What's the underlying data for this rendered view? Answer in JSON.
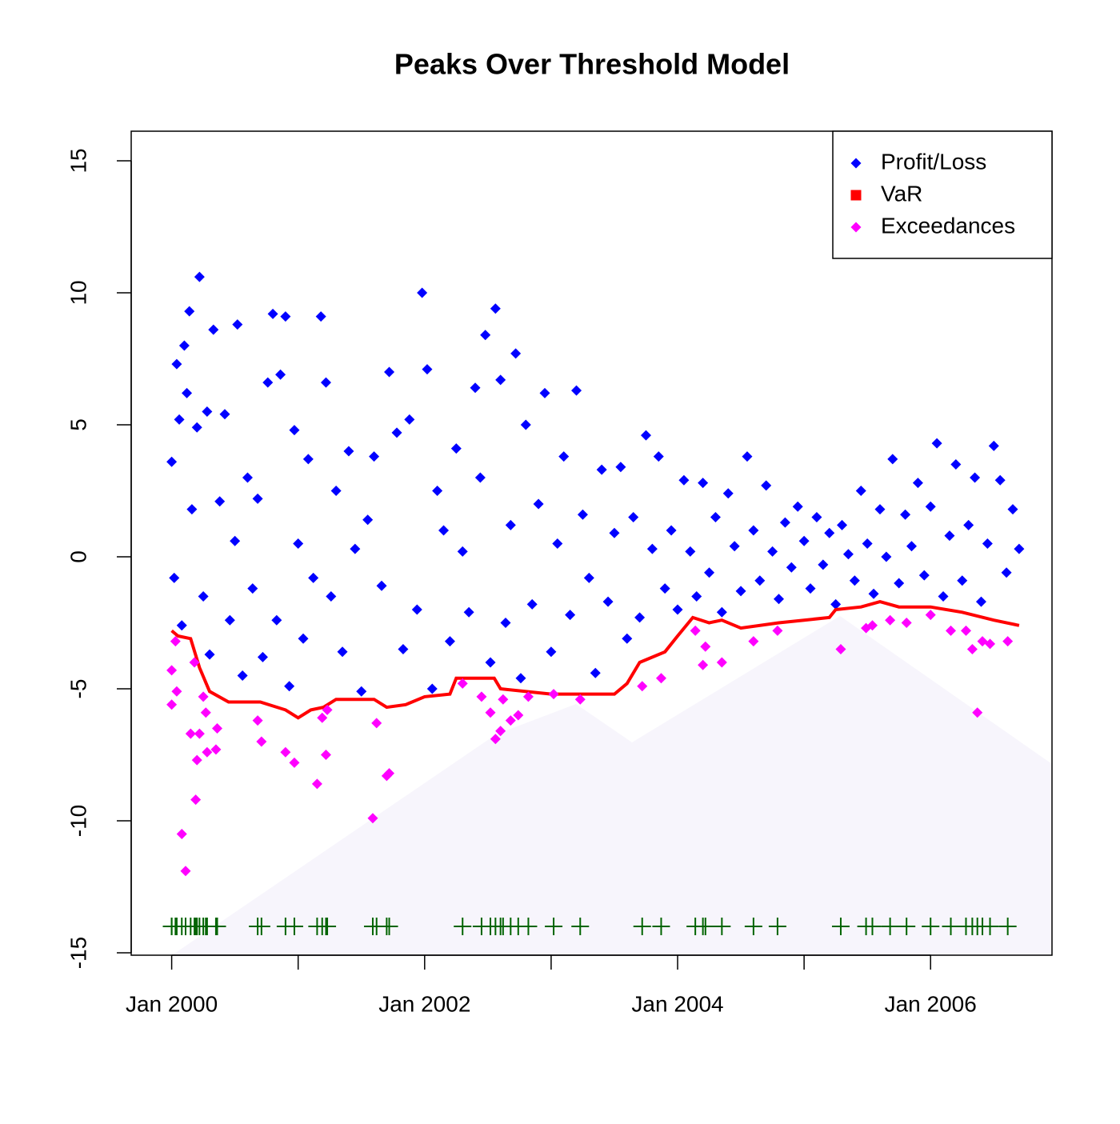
{
  "chart_data": {
    "type": "scatter",
    "title": "Peaks Over Threshold Model",
    "xlim": [
      1999.68,
      2006.96
    ],
    "ylim": [
      -15.09,
      16.12
    ],
    "xticks": [
      {
        "value": 2000,
        "label": "Jan 2000"
      },
      {
        "value": 2001
      },
      {
        "value": 2002,
        "label": "Jan 2002"
      },
      {
        "value": 2003
      },
      {
        "value": 2004,
        "label": "Jan 2004"
      },
      {
        "value": 2005
      },
      {
        "value": 2006,
        "label": "Jan 2006"
      }
    ],
    "yticks": [
      -15,
      -10,
      -5,
      0,
      5,
      10,
      15
    ],
    "legend": "topright",
    "rug": {
      "y": -14,
      "color": "#006400"
    },
    "series": [
      {
        "name": "Profit/Loss",
        "type": "points",
        "marker": "diamond",
        "color": "#0000ff",
        "x": [
          2000.0,
          2000.02,
          2000.04,
          2000.06,
          2000.08,
          2000.1,
          2000.12,
          2000.14,
          2000.16,
          2000.2,
          2000.22,
          2000.25,
          2000.28,
          2000.3,
          2000.33,
          2000.38,
          2000.42,
          2000.46,
          2000.5,
          2000.52,
          2000.56,
          2000.6,
          2000.64,
          2000.68,
          2000.72,
          2000.76,
          2000.8,
          2000.83,
          2000.86,
          2000.9,
          2000.93,
          2000.97,
          2001.0,
          2001.04,
          2001.08,
          2001.12,
          2001.18,
          2001.22,
          2001.26,
          2001.3,
          2001.35,
          2001.4,
          2001.45,
          2001.5,
          2001.55,
          2001.6,
          2001.66,
          2001.72,
          2001.78,
          2001.83,
          2001.88,
          2001.94,
          2001.98,
          2002.02,
          2002.06,
          2002.1,
          2002.15,
          2002.2,
          2002.25,
          2002.3,
          2002.35,
          2002.4,
          2002.44,
          2002.48,
          2002.52,
          2002.56,
          2002.6,
          2002.64,
          2002.68,
          2002.72,
          2002.76,
          2002.8,
          2002.85,
          2002.9,
          2002.95,
          2003.0,
          2003.05,
          2003.1,
          2003.15,
          2003.2,
          2003.25,
          2003.3,
          2003.35,
          2003.4,
          2003.45,
          2003.5,
          2003.55,
          2003.6,
          2003.65,
          2003.7,
          2003.75,
          2003.8,
          2003.85,
          2003.9,
          2003.95,
          2004.0,
          2004.05,
          2004.1,
          2004.15,
          2004.2,
          2004.25,
          2004.3,
          2004.35,
          2004.4,
          2004.45,
          2004.5,
          2004.55,
          2004.6,
          2004.65,
          2004.7,
          2004.75,
          2004.8,
          2004.85,
          2004.9,
          2004.95,
          2005.0,
          2005.05,
          2005.1,
          2005.15,
          2005.2,
          2005.25,
          2005.3,
          2005.35,
          2005.4,
          2005.45,
          2005.5,
          2005.55,
          2005.6,
          2005.65,
          2005.7,
          2005.75,
          2005.8,
          2005.85,
          2005.9,
          2005.95,
          2006.0,
          2006.05,
          2006.1,
          2006.15,
          2006.2,
          2006.25,
          2006.3,
          2006.35,
          2006.4,
          2006.45,
          2006.5,
          2006.55,
          2006.6,
          2006.65,
          2006.7
        ],
        "values": [
          3.6,
          -0.8,
          7.3,
          5.2,
          -2.6,
          8.0,
          6.2,
          9.3,
          1.8,
          4.9,
          10.6,
          -1.5,
          5.5,
          -3.7,
          8.6,
          2.1,
          5.4,
          -2.4,
          0.6,
          8.8,
          -4.5,
          3.0,
          -1.2,
          2.2,
          -3.8,
          6.6,
          9.2,
          -2.4,
          6.9,
          9.1,
          -4.9,
          4.8,
          0.5,
          -3.1,
          3.7,
          -0.8,
          9.1,
          6.6,
          -1.5,
          2.5,
          -3.6,
          4.0,
          0.3,
          -5.1,
          1.4,
          3.8,
          -1.1,
          7.0,
          4.7,
          -3.5,
          5.2,
          -2.0,
          10.0,
          7.1,
          -5.0,
          2.5,
          1.0,
          -3.2,
          4.1,
          0.2,
          -2.1,
          6.4,
          3.0,
          8.4,
          -4.0,
          9.4,
          6.7,
          -2.5,
          1.2,
          7.7,
          -4.6,
          5.0,
          -1.8,
          2.0,
          6.2,
          -3.6,
          0.5,
          3.8,
          -2.2,
          6.3,
          1.6,
          -0.8,
          -4.4,
          3.3,
          -1.7,
          0.9,
          3.4,
          -3.1,
          1.5,
          -2.3,
          4.6,
          0.3,
          3.8,
          -1.2,
          1.0,
          -2.0,
          2.9,
          0.2,
          -1.5,
          2.8,
          -0.6,
          1.5,
          -2.1,
          2.4,
          0.4,
          -1.3,
          3.8,
          1.0,
          -0.9,
          2.7,
          0.2,
          -1.6,
          1.3,
          -0.4,
          1.9,
          0.6,
          -1.2,
          1.5,
          -0.3,
          0.9,
          -1.8,
          1.2,
          0.1,
          -0.9,
          2.5,
          0.5,
          -1.4,
          1.8,
          0.0,
          3.7,
          -1.0,
          1.6,
          0.4,
          2.8,
          -0.7,
          1.9,
          4.3,
          -1.5,
          0.8,
          3.5,
          -0.9,
          1.2,
          3.0,
          -1.7,
          0.5,
          4.2,
          2.9,
          -0.6,
          1.8,
          0.3
        ]
      },
      {
        "name": "VaR",
        "type": "line",
        "marker": "square",
        "color": "#ff0000",
        "x": [
          2000.0,
          2000.05,
          2000.15,
          2000.22,
          2000.3,
          2000.45,
          2000.7,
          2000.9,
          2001.0,
          2001.1,
          2001.2,
          2001.3,
          2001.6,
          2001.7,
          2001.85,
          2002.0,
          2002.2,
          2002.25,
          2002.55,
          2002.6,
          2003.0,
          2003.5,
          2003.6,
          2003.7,
          2003.9,
          2004.0,
          2004.12,
          2004.25,
          2004.35,
          2004.5,
          2004.8,
          2005.0,
          2005.2,
          2005.25,
          2005.45,
          2005.6,
          2005.75,
          2006.0,
          2006.25,
          2006.5,
          2006.7
        ],
        "values": [
          -2.8,
          -3.0,
          -3.1,
          -4.2,
          -5.1,
          -5.5,
          -5.5,
          -5.8,
          -6.1,
          -5.8,
          -5.7,
          -5.4,
          -5.4,
          -5.7,
          -5.6,
          -5.3,
          -5.2,
          -4.6,
          -4.6,
          -5.0,
          -5.2,
          -5.2,
          -4.8,
          -4.0,
          -3.6,
          -3.0,
          -2.3,
          -2.5,
          -2.4,
          -2.7,
          -2.5,
          -2.4,
          -2.3,
          -2.0,
          -1.9,
          -1.7,
          -1.9,
          -1.9,
          -2.1,
          -2.4,
          -2.6
        ]
      },
      {
        "name": "Exceedances",
        "type": "points",
        "marker": "diamond",
        "color": "#ff00ff",
        "x": [
          2000.0,
          2000.0,
          2000.03,
          2000.04,
          2000.08,
          2000.11,
          2000.15,
          2000.18,
          2000.2,
          2000.19,
          2000.22,
          2000.25,
          2000.27,
          2000.28,
          2000.35,
          2000.36,
          2000.68,
          2000.71,
          2000.9,
          2000.97,
          2001.15,
          2001.19,
          2001.22,
          2001.23,
          2001.59,
          2001.62,
          2001.7,
          2001.72,
          2002.3,
          2002.45,
          2002.52,
          2002.56,
          2002.6,
          2002.62,
          2002.68,
          2002.74,
          2002.82,
          2003.02,
          2003.23,
          2003.72,
          2003.87,
          2004.14,
          2004.2,
          2004.22,
          2004.35,
          2004.6,
          2004.79,
          2005.29,
          2005.49,
          2005.54,
          2005.68,
          2005.81,
          2006.0,
          2006.16,
          2006.28,
          2006.33,
          2006.37,
          2006.41,
          2006.47,
          2006.61
        ],
        "values": [
          -4.3,
          -5.6,
          -3.2,
          -5.1,
          -10.5,
          -11.9,
          -6.7,
          -4.0,
          -7.7,
          -9.2,
          -6.7,
          -5.3,
          -5.9,
          -7.4,
          -7.3,
          -6.5,
          -6.2,
          -7.0,
          -7.4,
          -7.8,
          -8.6,
          -6.1,
          -7.5,
          -5.8,
          -9.9,
          -6.3,
          -8.3,
          -8.2,
          -4.8,
          -5.3,
          -5.9,
          -6.9,
          -6.6,
          -5.4,
          -6.2,
          -6.0,
          -5.3,
          -5.2,
          -5.4,
          -4.9,
          -4.6,
          -2.8,
          -4.1,
          -3.4,
          -4.0,
          -3.2,
          -2.8,
          -3.5,
          -2.7,
          -2.6,
          -2.4,
          -2.5,
          -2.2,
          -2.8,
          -2.8,
          -3.5,
          -5.9,
          -3.2,
          -3.3,
          -3.2
        ]
      }
    ]
  }
}
